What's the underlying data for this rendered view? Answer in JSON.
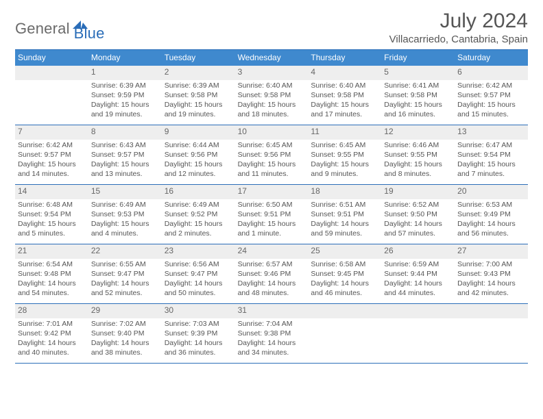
{
  "logo": {
    "text1": "General",
    "text2": "Blue"
  },
  "title": "July 2024",
  "location": "Villacarriedo, Cantabria, Spain",
  "colors": {
    "header_bg": "#3f89ce",
    "rule": "#2a6db8",
    "daynum_bg": "#eeeeee",
    "text": "#555555",
    "logo_gray": "#6a6a6a",
    "logo_blue": "#2a6db8"
  },
  "days_of_week": [
    "Sunday",
    "Monday",
    "Tuesday",
    "Wednesday",
    "Thursday",
    "Friday",
    "Saturday"
  ],
  "weeks": [
    [
      null,
      {
        "n": "1",
        "sunrise": "6:39 AM",
        "sunset": "9:59 PM",
        "daylight": "15 hours and 19 minutes."
      },
      {
        "n": "2",
        "sunrise": "6:39 AM",
        "sunset": "9:58 PM",
        "daylight": "15 hours and 19 minutes."
      },
      {
        "n": "3",
        "sunrise": "6:40 AM",
        "sunset": "9:58 PM",
        "daylight": "15 hours and 18 minutes."
      },
      {
        "n": "4",
        "sunrise": "6:40 AM",
        "sunset": "9:58 PM",
        "daylight": "15 hours and 17 minutes."
      },
      {
        "n": "5",
        "sunrise": "6:41 AM",
        "sunset": "9:58 PM",
        "daylight": "15 hours and 16 minutes."
      },
      {
        "n": "6",
        "sunrise": "6:42 AM",
        "sunset": "9:57 PM",
        "daylight": "15 hours and 15 minutes."
      }
    ],
    [
      {
        "n": "7",
        "sunrise": "6:42 AM",
        "sunset": "9:57 PM",
        "daylight": "15 hours and 14 minutes."
      },
      {
        "n": "8",
        "sunrise": "6:43 AM",
        "sunset": "9:57 PM",
        "daylight": "15 hours and 13 minutes."
      },
      {
        "n": "9",
        "sunrise": "6:44 AM",
        "sunset": "9:56 PM",
        "daylight": "15 hours and 12 minutes."
      },
      {
        "n": "10",
        "sunrise": "6:45 AM",
        "sunset": "9:56 PM",
        "daylight": "15 hours and 11 minutes."
      },
      {
        "n": "11",
        "sunrise": "6:45 AM",
        "sunset": "9:55 PM",
        "daylight": "15 hours and 9 minutes."
      },
      {
        "n": "12",
        "sunrise": "6:46 AM",
        "sunset": "9:55 PM",
        "daylight": "15 hours and 8 minutes."
      },
      {
        "n": "13",
        "sunrise": "6:47 AM",
        "sunset": "9:54 PM",
        "daylight": "15 hours and 7 minutes."
      }
    ],
    [
      {
        "n": "14",
        "sunrise": "6:48 AM",
        "sunset": "9:54 PM",
        "daylight": "15 hours and 5 minutes."
      },
      {
        "n": "15",
        "sunrise": "6:49 AM",
        "sunset": "9:53 PM",
        "daylight": "15 hours and 4 minutes."
      },
      {
        "n": "16",
        "sunrise": "6:49 AM",
        "sunset": "9:52 PM",
        "daylight": "15 hours and 2 minutes."
      },
      {
        "n": "17",
        "sunrise": "6:50 AM",
        "sunset": "9:51 PM",
        "daylight": "15 hours and 1 minute."
      },
      {
        "n": "18",
        "sunrise": "6:51 AM",
        "sunset": "9:51 PM",
        "daylight": "14 hours and 59 minutes."
      },
      {
        "n": "19",
        "sunrise": "6:52 AM",
        "sunset": "9:50 PM",
        "daylight": "14 hours and 57 minutes."
      },
      {
        "n": "20",
        "sunrise": "6:53 AM",
        "sunset": "9:49 PM",
        "daylight": "14 hours and 56 minutes."
      }
    ],
    [
      {
        "n": "21",
        "sunrise": "6:54 AM",
        "sunset": "9:48 PM",
        "daylight": "14 hours and 54 minutes."
      },
      {
        "n": "22",
        "sunrise": "6:55 AM",
        "sunset": "9:47 PM",
        "daylight": "14 hours and 52 minutes."
      },
      {
        "n": "23",
        "sunrise": "6:56 AM",
        "sunset": "9:47 PM",
        "daylight": "14 hours and 50 minutes."
      },
      {
        "n": "24",
        "sunrise": "6:57 AM",
        "sunset": "9:46 PM",
        "daylight": "14 hours and 48 minutes."
      },
      {
        "n": "25",
        "sunrise": "6:58 AM",
        "sunset": "9:45 PM",
        "daylight": "14 hours and 46 minutes."
      },
      {
        "n": "26",
        "sunrise": "6:59 AM",
        "sunset": "9:44 PM",
        "daylight": "14 hours and 44 minutes."
      },
      {
        "n": "27",
        "sunrise": "7:00 AM",
        "sunset": "9:43 PM",
        "daylight": "14 hours and 42 minutes."
      }
    ],
    [
      {
        "n": "28",
        "sunrise": "7:01 AM",
        "sunset": "9:42 PM",
        "daylight": "14 hours and 40 minutes."
      },
      {
        "n": "29",
        "sunrise": "7:02 AM",
        "sunset": "9:40 PM",
        "daylight": "14 hours and 38 minutes."
      },
      {
        "n": "30",
        "sunrise": "7:03 AM",
        "sunset": "9:39 PM",
        "daylight": "14 hours and 36 minutes."
      },
      {
        "n": "31",
        "sunrise": "7:04 AM",
        "sunset": "9:38 PM",
        "daylight": "14 hours and 34 minutes."
      },
      null,
      null,
      null
    ]
  ],
  "labels": {
    "sunrise": "Sunrise:",
    "sunset": "Sunset:",
    "daylight": "Daylight:"
  }
}
